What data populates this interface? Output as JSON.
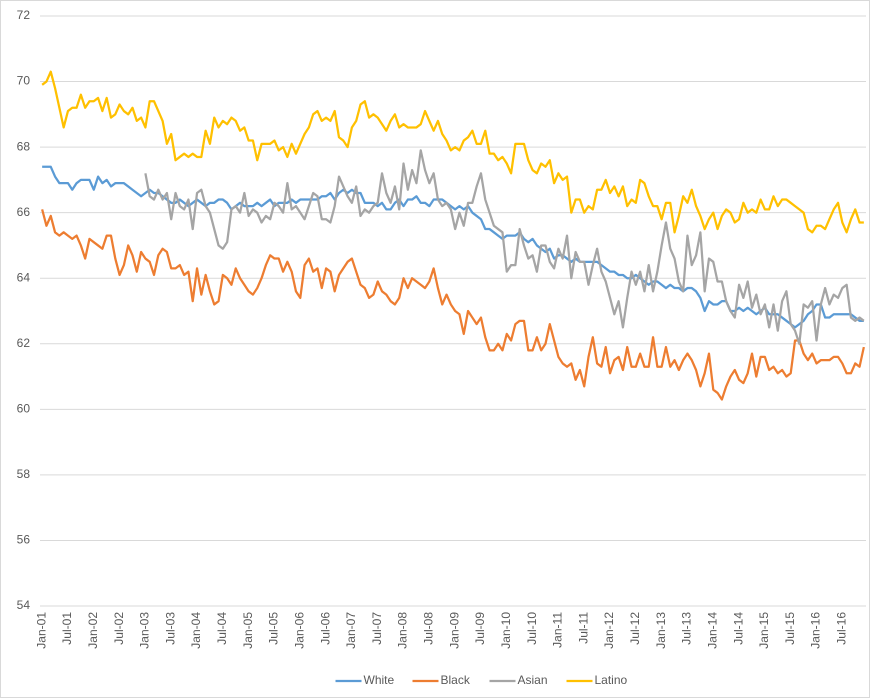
{
  "chart_data": {
    "type": "line",
    "categories": [
      "Jan-01",
      null,
      null,
      null,
      null,
      null,
      "Jul-01",
      null,
      null,
      null,
      null,
      null,
      "Jan-02",
      null,
      null,
      null,
      null,
      null,
      "Jul-02",
      null,
      null,
      null,
      null,
      null,
      "Jan-03",
      null,
      null,
      null,
      null,
      null,
      "Jul-03",
      null,
      null,
      null,
      null,
      null,
      "Jan-04",
      null,
      null,
      null,
      null,
      null,
      "Jul-04",
      null,
      null,
      null,
      null,
      null,
      "Jan-05",
      null,
      null,
      null,
      null,
      null,
      "Jul-05",
      null,
      null,
      null,
      null,
      null,
      "Jan-06",
      null,
      null,
      null,
      null,
      null,
      "Jul-06",
      null,
      null,
      null,
      null,
      null,
      "Jan-07",
      null,
      null,
      null,
      null,
      null,
      "Jul-07",
      null,
      null,
      null,
      null,
      null,
      "Jan-08",
      null,
      null,
      null,
      null,
      null,
      "Jul-08",
      null,
      null,
      null,
      null,
      null,
      "Jan-09",
      null,
      null,
      null,
      null,
      null,
      "Jul-09",
      null,
      null,
      null,
      null,
      null,
      "Jan-10",
      null,
      null,
      null,
      null,
      null,
      "Jul-10",
      null,
      null,
      null,
      null,
      null,
      "Jan-11",
      null,
      null,
      null,
      null,
      null,
      "Jul-11",
      null,
      null,
      null,
      null,
      null,
      "Jan-12",
      null,
      null,
      null,
      null,
      null,
      "Jul-12",
      null,
      null,
      null,
      null,
      null,
      "Jan-13",
      null,
      null,
      null,
      null,
      null,
      "Jul-13",
      null,
      null,
      null,
      null,
      null,
      "Jan-14",
      null,
      null,
      null,
      null,
      null,
      "Jul-14",
      null,
      null,
      null,
      null,
      null,
      "Jan-15",
      null,
      null,
      null,
      null,
      null,
      "Jul-15",
      null,
      null,
      null,
      null,
      null,
      "Jan-16",
      null,
      null,
      null,
      null,
      null,
      "Jul-16",
      null,
      null,
      null,
      null,
      null
    ],
    "series": [
      {
        "name": "White",
        "color": "#5b9bd5",
        "values": [
          67.4,
          67.4,
          67.4,
          67.1,
          66.9,
          66.9,
          66.9,
          66.7,
          66.9,
          67.0,
          67.0,
          67.0,
          66.7,
          67.1,
          66.9,
          67.0,
          66.8,
          66.9,
          66.9,
          66.9,
          66.8,
          66.7,
          66.6,
          66.5,
          66.6,
          66.7,
          66.6,
          66.6,
          66.5,
          66.4,
          66.3,
          66.3,
          66.4,
          66.3,
          66.2,
          66.3,
          66.4,
          66.3,
          66.2,
          66.3,
          66.3,
          66.4,
          66.4,
          66.3,
          66.1,
          66.2,
          66.3,
          66.2,
          66.2,
          66.2,
          66.3,
          66.2,
          66.3,
          66.4,
          66.2,
          66.3,
          66.3,
          66.3,
          66.4,
          66.3,
          66.4,
          66.4,
          66.4,
          66.4,
          66.4,
          66.5,
          66.5,
          66.6,
          66.4,
          66.6,
          66.7,
          66.6,
          66.7,
          66.6,
          66.6,
          66.3,
          66.3,
          66.3,
          66.2,
          66.3,
          66.1,
          66.1,
          66.3,
          66.4,
          66.2,
          66.4,
          66.4,
          66.5,
          66.3,
          66.3,
          66.2,
          66.4,
          66.4,
          66.4,
          66.3,
          66.2,
          66.1,
          66.2,
          66.1,
          66.2,
          66.0,
          65.9,
          65.8,
          65.5,
          65.5,
          65.4,
          65.3,
          65.2,
          65.3,
          65.3,
          65.3,
          65.4,
          65.2,
          65.1,
          65.2,
          65.0,
          64.9,
          64.8,
          64.9,
          64.6,
          64.7,
          64.7,
          64.6,
          64.5,
          64.6,
          64.5,
          64.5,
          64.5,
          64.5,
          64.5,
          64.4,
          64.3,
          64.2,
          64.2,
          64.1,
          64.1,
          64.0,
          64.0,
          64.1,
          64.0,
          63.9,
          63.8,
          63.9,
          63.9,
          63.8,
          63.7,
          63.8,
          63.7,
          63.7,
          63.6,
          63.7,
          63.7,
          63.6,
          63.4,
          63.0,
          63.3,
          63.2,
          63.2,
          63.3,
          63.3,
          63.0,
          63.0,
          63.1,
          63.0,
          63.1,
          63.0,
          62.9,
          63.0,
          63.1,
          62.9,
          62.9,
          62.9,
          62.8,
          62.7,
          62.6,
          62.5,
          62.6,
          62.7,
          62.9,
          63.0,
          63.2,
          63.2,
          62.8,
          62.8,
          62.9,
          62.9,
          62.9,
          62.9,
          62.9,
          62.8,
          62.7,
          62.7
        ]
      },
      {
        "name": "Black",
        "color": "#ed7d31",
        "values": [
          66.1,
          65.6,
          65.9,
          65.4,
          65.3,
          65.4,
          65.3,
          65.2,
          65.3,
          65.0,
          64.6,
          65.2,
          65.1,
          65.0,
          64.9,
          65.3,
          65.3,
          64.6,
          64.1,
          64.4,
          65.0,
          64.7,
          64.2,
          64.8,
          64.6,
          64.5,
          64.1,
          64.7,
          64.9,
          64.8,
          64.3,
          64.3,
          64.4,
          64.1,
          64.2,
          63.3,
          64.3,
          63.5,
          64.1,
          63.6,
          63.2,
          63.3,
          64.1,
          64.0,
          63.8,
          64.3,
          64.0,
          63.8,
          63.6,
          63.5,
          63.7,
          64.0,
          64.4,
          64.7,
          64.6,
          64.6,
          64.2,
          64.5,
          64.2,
          63.6,
          63.4,
          64.4,
          64.6,
          64.2,
          64.3,
          63.7,
          64.3,
          64.2,
          63.6,
          64.1,
          64.3,
          64.5,
          64.6,
          64.2,
          63.8,
          63.7,
          63.4,
          63.5,
          63.9,
          63.6,
          63.5,
          63.3,
          63.2,
          63.4,
          64.0,
          63.7,
          64.0,
          63.9,
          63.8,
          63.7,
          63.9,
          64.3,
          63.7,
          63.2,
          63.5,
          63.2,
          63.0,
          62.9,
          62.3,
          63.0,
          62.8,
          62.6,
          62.8,
          62.2,
          61.8,
          61.8,
          62.0,
          61.8,
          62.3,
          62.1,
          62.6,
          62.7,
          62.7,
          61.8,
          61.8,
          62.2,
          61.8,
          62.0,
          62.6,
          62.1,
          61.6,
          61.4,
          61.3,
          61.4,
          60.9,
          61.2,
          60.7,
          61.6,
          62.2,
          61.4,
          61.3,
          61.9,
          61.1,
          61.5,
          61.6,
          61.2,
          61.9,
          61.3,
          61.3,
          61.7,
          61.3,
          61.3,
          62.2,
          61.3,
          61.3,
          61.9,
          61.3,
          61.5,
          61.2,
          61.5,
          61.7,
          61.5,
          61.2,
          60.7,
          61.1,
          61.7,
          60.6,
          60.5,
          60.3,
          60.7,
          61.0,
          61.2,
          60.9,
          60.8,
          61.1,
          61.7,
          61.0,
          61.6,
          61.6,
          61.2,
          61.3,
          61.1,
          61.2,
          61.0,
          61.1,
          62.1,
          62.1,
          61.7,
          61.5,
          61.7,
          61.4,
          61.5,
          61.5,
          61.5,
          61.6,
          61.6,
          61.4,
          61.1,
          61.1,
          61.4,
          61.3,
          61.9
        ]
      },
      {
        "name": "Asian",
        "color": "#a5a5a5",
        "values": [
          null,
          null,
          null,
          null,
          null,
          null,
          null,
          null,
          null,
          null,
          null,
          null,
          null,
          null,
          null,
          null,
          null,
          null,
          null,
          null,
          null,
          null,
          null,
          null,
          67.2,
          66.5,
          66.4,
          66.7,
          66.4,
          66.6,
          65.8,
          66.6,
          66.2,
          66.1,
          66.4,
          65.5,
          66.6,
          66.7,
          66.2,
          66.0,
          65.5,
          65.0,
          64.9,
          65.1,
          66.1,
          66.2,
          66.0,
          66.6,
          65.9,
          66.1,
          66.0,
          65.7,
          65.9,
          65.8,
          66.3,
          66.2,
          66.0,
          66.9,
          66.1,
          66.2,
          66.0,
          65.8,
          66.2,
          66.6,
          66.5,
          65.8,
          65.8,
          65.7,
          66.2,
          67.1,
          66.8,
          66.5,
          66.3,
          66.8,
          65.9,
          66.1,
          66.0,
          66.2,
          66.3,
          67.2,
          66.6,
          66.3,
          66.8,
          66.1,
          67.5,
          66.7,
          67.3,
          66.9,
          67.9,
          67.3,
          66.9,
          67.2,
          66.4,
          66.2,
          66.3,
          66.1,
          65.5,
          66.0,
          65.6,
          66.3,
          66.3,
          66.8,
          67.2,
          66.4,
          66.0,
          65.6,
          65.5,
          65.4,
          64.2,
          64.4,
          64.4,
          65.5,
          65.0,
          64.6,
          64.7,
          64.2,
          65.0,
          65.0,
          64.5,
          64.3,
          64.9,
          64.6,
          65.3,
          64.0,
          64.8,
          64.5,
          64.5,
          63.8,
          64.4,
          64.9,
          64.2,
          63.9,
          63.4,
          62.9,
          63.3,
          62.5,
          63.4,
          64.2,
          63.8,
          64.2,
          63.6,
          64.4,
          63.6,
          64.2,
          65.0,
          65.7,
          64.9,
          64.6,
          63.9,
          63.6,
          65.3,
          64.4,
          64.7,
          65.4,
          63.6,
          64.6,
          64.5,
          63.9,
          63.9,
          63.3,
          63.0,
          62.8,
          63.8,
          63.4,
          63.9,
          63.1,
          63.5,
          62.9,
          63.2,
          62.5,
          63.2,
          62.4,
          63.3,
          63.6,
          62.6,
          62.4,
          62.0,
          63.2,
          63.1,
          63.3,
          62.1,
          63.2,
          63.7,
          63.2,
          63.5,
          63.4,
          63.7,
          63.8,
          62.8,
          62.7,
          62.8,
          62.7
        ]
      },
      {
        "name": "Latino",
        "color": "#ffc000",
        "values": [
          69.9,
          70.0,
          70.3,
          69.8,
          69.2,
          68.6,
          69.1,
          69.2,
          69.2,
          69.6,
          69.2,
          69.4,
          69.4,
          69.5,
          69.1,
          69.5,
          68.9,
          69.0,
          69.3,
          69.1,
          69.0,
          69.2,
          68.8,
          68.9,
          68.6,
          69.4,
          69.4,
          69.1,
          68.8,
          68.1,
          68.4,
          67.6,
          67.7,
          67.8,
          67.7,
          67.8,
          67.7,
          67.7,
          68.5,
          68.1,
          68.9,
          68.6,
          68.8,
          68.7,
          68.9,
          68.8,
          68.5,
          68.6,
          68.2,
          68.2,
          67.6,
          68.1,
          68.1,
          68.1,
          68.2,
          67.9,
          68.0,
          67.7,
          68.1,
          67.8,
          68.1,
          68.4,
          68.6,
          69.0,
          69.1,
          68.8,
          68.9,
          68.8,
          69.1,
          68.3,
          68.2,
          68.0,
          68.6,
          68.8,
          69.3,
          69.4,
          68.9,
          69.0,
          68.9,
          68.7,
          68.5,
          68.8,
          69.0,
          68.6,
          68.7,
          68.6,
          68.6,
          68.6,
          68.7,
          69.1,
          68.8,
          68.5,
          68.8,
          68.4,
          68.2,
          67.9,
          68.0,
          67.9,
          68.2,
          68.3,
          68.5,
          68.1,
          68.1,
          68.5,
          67.8,
          67.8,
          67.6,
          67.7,
          67.5,
          67.2,
          68.1,
          68.1,
          68.1,
          67.6,
          67.3,
          67.2,
          67.5,
          67.4,
          67.6,
          66.9,
          67.2,
          67.0,
          67.1,
          66.0,
          66.4,
          66.4,
          66.0,
          66.2,
          66.1,
          66.7,
          66.7,
          67.0,
          66.6,
          66.8,
          66.5,
          66.8,
          66.2,
          66.4,
          66.3,
          67.0,
          66.9,
          66.5,
          66.2,
          66.2,
          65.8,
          66.3,
          66.3,
          65.4,
          65.9,
          66.5,
          66.3,
          66.7,
          66.2,
          65.9,
          65.5,
          65.8,
          66.0,
          65.5,
          65.9,
          66.1,
          66.0,
          65.7,
          65.8,
          66.3,
          66.0,
          66.1,
          66.0,
          66.4,
          66.1,
          66.1,
          66.5,
          66.2,
          66.4,
          66.4,
          66.3,
          66.2,
          66.1,
          66.0,
          65.5,
          65.4,
          65.6,
          65.6,
          65.5,
          65.8,
          66.1,
          66.3,
          65.7,
          65.4,
          65.8,
          66.1,
          65.7,
          65.7
        ]
      }
    ],
    "ylim": [
      54,
      72
    ],
    "yticks": [
      54,
      56,
      58,
      60,
      62,
      64,
      66,
      68,
      70,
      72
    ],
    "grid": true,
    "legend": "bottom"
  }
}
